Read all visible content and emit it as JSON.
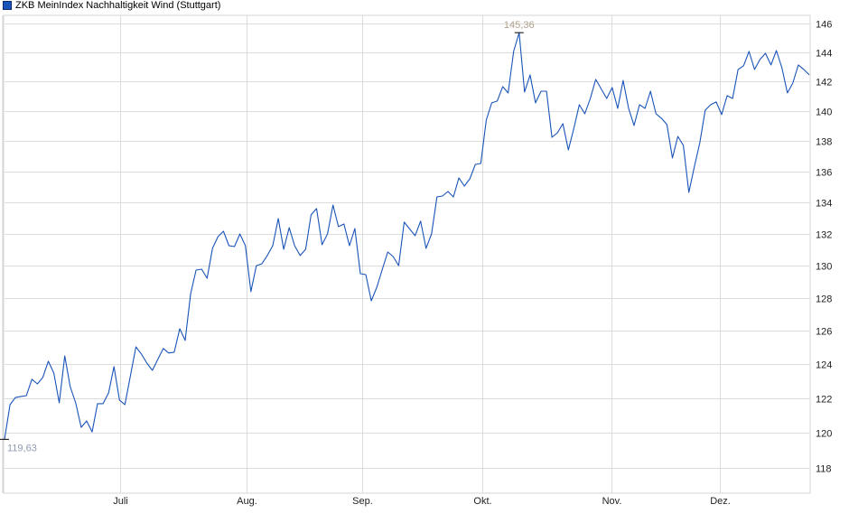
{
  "legend": {
    "label": "ZKB MeinIndex Nachhaltigkeit Wind (Stuttgart)",
    "color": "#1a54b8"
  },
  "chart_data": {
    "type": "line",
    "title": "",
    "xlabel": "",
    "ylabel": "",
    "y_scale": "log",
    "ylim": [
      117,
      147
    ],
    "y_ticks": [
      "118",
      "120",
      "122",
      "124",
      "126",
      "128",
      "130",
      "132",
      "134",
      "136",
      "138",
      "140",
      "142",
      "144",
      "146"
    ],
    "x_tick_labels": [
      "Juli",
      "Aug.",
      "Sep.",
      "Okt.",
      "Nov.",
      "Dez."
    ],
    "grid": true,
    "legend_position": "top-left",
    "line_color": "#1a54b8",
    "min_label": "119,63",
    "max_label": "145,36",
    "series": [
      {
        "name": "ZKB MeinIndex Nachhaltigkeit Wind (Stuttgart)",
        "values": [
          119.63,
          121.63,
          122.05,
          122.11,
          122.16,
          123.12,
          122.85,
          123.23,
          124.19,
          123.49,
          121.74,
          124.51,
          122.69,
          121.74,
          120.32,
          120.69,
          120.06,
          121.69,
          121.69,
          122.32,
          123.87,
          121.9,
          121.63,
          123.33,
          125.05,
          124.62,
          124.08,
          123.65,
          124.3,
          124.95,
          124.68,
          124.73,
          126.14,
          125.43,
          128.28,
          129.73,
          129.79,
          129.23,
          131.09,
          131.83,
          132.17,
          131.26,
          131.2,
          132.0,
          131.26,
          128.4,
          130.01,
          130.12,
          130.64,
          131.26,
          132.98,
          131.03,
          132.4,
          131.26,
          130.64,
          131.03,
          133.21,
          133.61,
          131.32,
          132.0,
          133.84,
          132.46,
          132.63,
          131.26,
          132.34,
          129.51,
          129.45,
          127.84,
          128.67,
          129.76,
          130.86,
          130.58,
          130.01,
          132.75,
          132.32,
          131.89,
          132.81,
          131.09,
          132.0,
          134.36,
          134.42,
          134.71,
          134.36,
          135.59,
          135.06,
          135.53,
          136.47,
          136.53,
          139.4,
          140.55,
          140.67,
          141.65,
          141.22,
          144.06,
          145.36,
          141.28,
          142.45,
          140.55,
          141.34,
          141.34,
          138.25,
          138.55,
          139.16,
          137.42,
          138.86,
          140.43,
          139.82,
          140.85,
          142.14,
          141.49,
          140.85,
          141.59,
          140.18,
          142.07,
          140.18,
          139.04,
          140.43,
          140.18,
          141.34,
          139.82,
          139.52,
          139.1,
          136.89,
          138.31,
          137.72,
          134.65,
          136.3,
          137.89,
          140.06,
          140.43,
          140.61,
          139.76,
          141.04,
          140.85,
          142.82,
          143.07,
          144.06,
          142.82,
          143.5,
          143.93,
          143.13,
          144.12,
          142.94,
          141.22,
          141.89,
          143.13,
          142.82,
          142.45
        ]
      }
    ]
  }
}
